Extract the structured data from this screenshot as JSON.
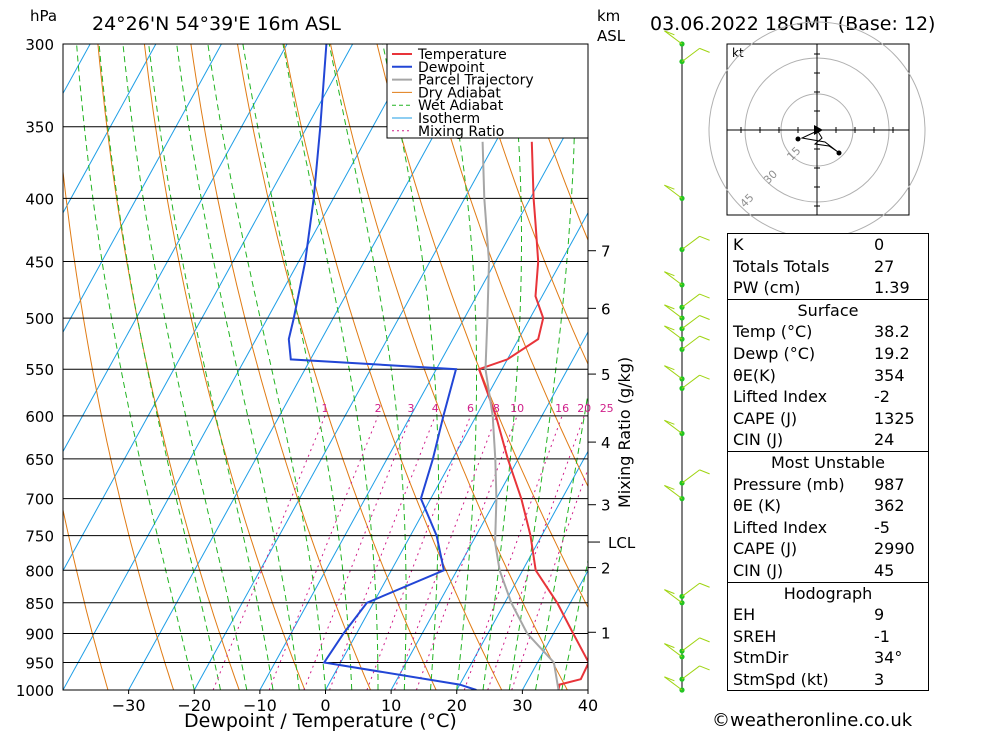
{
  "header": {
    "hpa_label": "hPa",
    "location": "24°26'N  54°39'E  16m  ASL",
    "km_label": "km",
    "asl_label": "ASL",
    "datetime": "03.06.2022  18GMT  (Base: 12)"
  },
  "footer": {
    "credit": "©weatheronline.co.uk"
  },
  "colors": {
    "temperature": "#e8343a",
    "dewpoint": "#2246d6",
    "parcel": "#a6a6a6",
    "dry_adiabat": "#e07b14",
    "wet_adiabat": "#22b422",
    "isotherm": "#1e9ee6",
    "mixing_ratio": "#d0208a",
    "wind": "#9fd411"
  },
  "chart_data": {
    "type": "line",
    "title": "",
    "xlabel": "Dewpoint / Temperature (°C)",
    "ylabel_left": "hPa",
    "xlim": [
      -40,
      40
    ],
    "ylim": [
      1000,
      300
    ],
    "x_ticks": [
      -30,
      -20,
      -10,
      0,
      10,
      20,
      30,
      40
    ],
    "pressure_ticks": [
      300,
      350,
      400,
      450,
      500,
      550,
      600,
      650,
      700,
      750,
      800,
      850,
      900,
      950,
      1000
    ],
    "height_ticks_km": [
      {
        "label": "7",
        "p": 441
      },
      {
        "label": "6",
        "p": 491
      },
      {
        "label": "5",
        "p": 555
      },
      {
        "label": "4",
        "p": 630
      },
      {
        "label": "3",
        "p": 708
      },
      {
        "label": "2",
        "p": 796
      },
      {
        "label": "1",
        "p": 898
      }
    ],
    "lcl": {
      "label": "LCL",
      "p": 759
    },
    "mixing_ratio_axis_label": "Mixing Ratio (g/kg)",
    "mixing_ratio_labels": [
      "1",
      "2",
      "3",
      "4",
      "6",
      "8",
      "10",
      "16",
      "20",
      "25"
    ],
    "legend": {
      "position": "top-right",
      "entries": [
        "Temperature",
        "Dewpoint",
        "Parcel Trajectory",
        "Dry Adiabat",
        "Wet Adiabat",
        "Isotherm",
        "Mixing Ratio"
      ]
    },
    "series": [
      {
        "name": "Temperature",
        "points": [
          [
            1000,
            35.5
          ],
          [
            990,
            35.2
          ],
          [
            980,
            38.0
          ],
          [
            950,
            37.8
          ],
          [
            900,
            33.0
          ],
          [
            850,
            28.0
          ],
          [
            800,
            22.0
          ],
          [
            750,
            18.3
          ],
          [
            700,
            13.8
          ],
          [
            650,
            8.4
          ],
          [
            600,
            3.0
          ],
          [
            550,
            -3.5
          ],
          [
            540,
            0.0
          ],
          [
            520,
            3.0
          ],
          [
            500,
            2.0
          ],
          [
            480,
            -1.0
          ],
          [
            450,
            -3.5
          ],
          [
            420,
            -7.0
          ],
          [
            400,
            -9.5
          ],
          [
            360,
            -14.5
          ]
        ]
      },
      {
        "name": "Dewpoint",
        "points": [
          [
            1000,
            23.0
          ],
          [
            990,
            20.0
          ],
          [
            950,
            -2.5
          ],
          [
            900,
            -2.0
          ],
          [
            850,
            -1.0
          ],
          [
            800,
            8.0
          ],
          [
            750,
            4.0
          ],
          [
            700,
            -1.5
          ],
          [
            650,
            -3.0
          ],
          [
            600,
            -5.0
          ],
          [
            550,
            -7.0
          ],
          [
            540,
            -33.0
          ],
          [
            520,
            -35.0
          ],
          [
            500,
            -36.0
          ],
          [
            450,
            -39.0
          ],
          [
            400,
            -43.0
          ],
          [
            350,
            -48.0
          ],
          [
            300,
            -54.0
          ]
        ]
      },
      {
        "name": "Parcel Trajectory",
        "points": [
          [
            1000,
            35.5
          ],
          [
            950,
            32.5
          ],
          [
            900,
            26.0
          ],
          [
            850,
            21.0
          ],
          [
            800,
            16.5
          ],
          [
            760,
            13.5
          ],
          [
            700,
            10.0
          ],
          [
            650,
            6.5
          ],
          [
            600,
            2.5
          ],
          [
            550,
            -2.5
          ],
          [
            500,
            -6.5
          ],
          [
            450,
            -11.0
          ],
          [
            400,
            -17.0
          ],
          [
            360,
            -22.0
          ]
        ]
      }
    ],
    "wind_barbs_p": [
      300,
      310,
      400,
      440,
      470,
      490,
      500,
      510,
      520,
      530,
      560,
      570,
      620,
      680,
      700,
      840,
      850,
      930,
      940,
      980,
      1000
    ],
    "hodograph": {
      "unit": "kt",
      "rings": [
        15,
        30,
        45
      ],
      "ring_labels": [
        "15",
        "30",
        "45"
      ]
    }
  },
  "indices": {
    "k_label": "K",
    "k_value": "0",
    "tt_label": "Totals Totals",
    "tt_value": "27",
    "pw_label": "PW (cm)",
    "pw_value": "1.39"
  },
  "surface": {
    "title": "Surface",
    "temp_label": "Temp (°C)",
    "temp_value": "38.2",
    "dewp_label": "Dewp (°C)",
    "dewp_value": "19.2",
    "theta_label": "θE(K)",
    "theta_value": "354",
    "li_label": "Lifted Index",
    "li_value": "-2",
    "cape_label": "CAPE (J)",
    "cape_value": "1325",
    "cin_label": "CIN (J)",
    "cin_value": "24"
  },
  "most_unstable": {
    "title": "Most Unstable",
    "pressure_label": "Pressure (mb)",
    "pressure_value": "987",
    "theta_label": "θE (K)",
    "theta_value": "362",
    "li_label": "Lifted Index",
    "li_value": "-5",
    "cape_label": "CAPE (J)",
    "cape_value": "2990",
    "cin_label": "CIN (J)",
    "cin_value": "45"
  },
  "hodograph_stats": {
    "title": "Hodograph",
    "eh_label": "EH",
    "eh_value": "9",
    "sreh_label": "SREH",
    "sreh_value": "-1",
    "stmdir_label": "StmDir",
    "stmdir_value": "34°",
    "stmspd_label": "StmSpd (kt)",
    "stmspd_value": "3"
  }
}
